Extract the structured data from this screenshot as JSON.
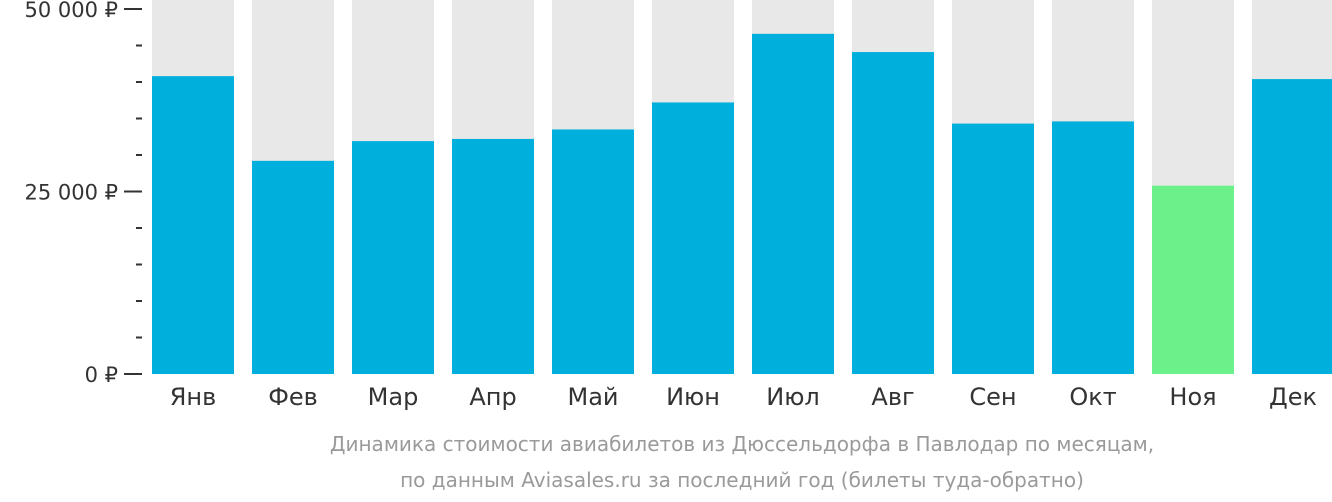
{
  "chart_data": {
    "type": "bar",
    "categories": [
      "Янв",
      "Фев",
      "Мар",
      "Апр",
      "Май",
      "Июн",
      "Июл",
      "Авг",
      "Сен",
      "Окт",
      "Ноя",
      "Дек"
    ],
    "values": [
      40800,
      29200,
      31900,
      32200,
      33500,
      37200,
      46600,
      44100,
      34300,
      34600,
      25800,
      40400
    ],
    "ylim": [
      0,
      50000
    ],
    "yticks": [
      {
        "value": 0,
        "label": "0 ₽"
      },
      {
        "value": 25000,
        "label": "25 000 ₽"
      },
      {
        "value": 50000,
        "label": "50 000 ₽"
      }
    ],
    "minor_tick_step": 5000,
    "highlight_index": 10,
    "colors": {
      "bar": "#00afdc",
      "highlight": "#6cf08a",
      "background_bar": "#e8e8e8",
      "axis": "#333333"
    },
    "caption_line1": "Динамика стоимости авиабилетов из Дюссельдорфа в Павлодар по месяцам,",
    "caption_line2": "по данным Aviasales.ru за последний год (билеты туда-обратно)"
  }
}
